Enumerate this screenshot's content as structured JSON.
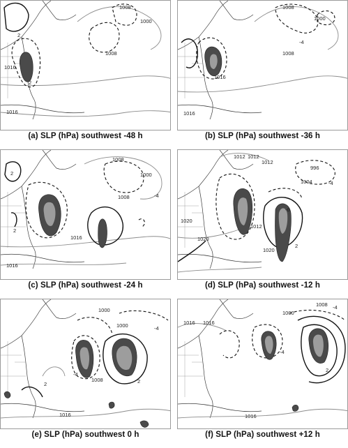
{
  "panels": [
    {
      "caption": "(a) SLP (hPa) southwest -48 h",
      "labels": [
        "1008",
        "1000",
        "1008",
        "1016",
        "1016",
        "2",
        "2"
      ]
    },
    {
      "caption": "(b) SLP (hPa) southwest -36 h",
      "labels": [
        "1008",
        "1000",
        "1008",
        "-4",
        "1016",
        "1016"
      ]
    },
    {
      "caption": "(c) SLP (hPa) southwest -24 h",
      "labels": [
        "1008",
        "1000",
        "1008",
        "-4",
        "2",
        "2",
        "1016",
        "1016"
      ]
    },
    {
      "caption": "(d) SLP (hPa) southwest -12 h",
      "labels": [
        "1012",
        "1012",
        "1012",
        "996",
        "1004",
        "-4",
        "1020",
        "1020",
        "-6",
        "2",
        "1012",
        "1020"
      ]
    },
    {
      "caption": "(e) SLP (hPa) southwest 0 h",
      "labels": [
        "1000",
        "1000",
        "-4",
        "1008",
        "2",
        "-4",
        "2",
        "1016"
      ]
    },
    {
      "caption": "(f) SLP (hPa) southwest +12 h",
      "labels": [
        "1016",
        "1016",
        "1000",
        "-4",
        "1008",
        "-4",
        "2",
        "1016"
      ]
    }
  ]
}
